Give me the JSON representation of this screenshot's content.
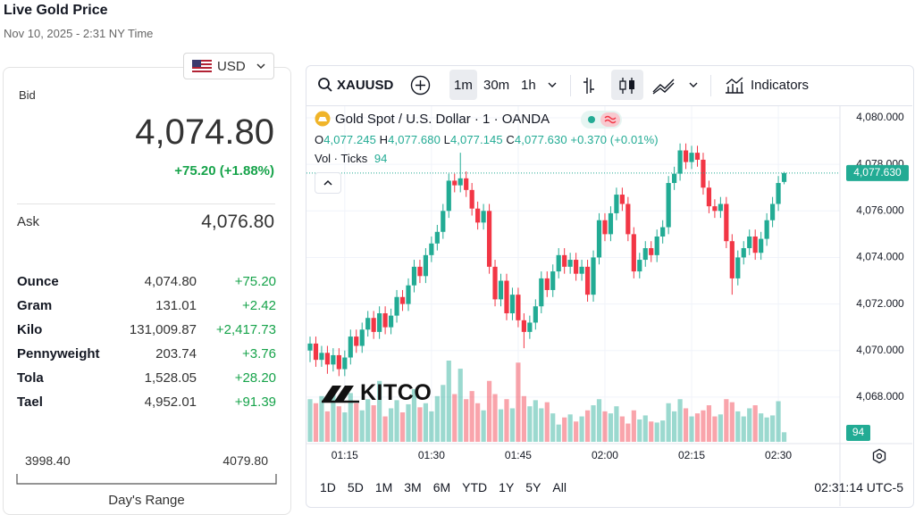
{
  "header": {
    "title": "Live Gold Price",
    "date": "Nov 10, 2025 - 2:31 NY Time"
  },
  "currency": "USD",
  "quote": {
    "bid_label": "Bid",
    "bid": "4,074.80",
    "change": "+75.20 (+1.88%)",
    "ask_label": "Ask",
    "ask": "4,076.80"
  },
  "units": {
    "rows": [
      [
        "Ounce",
        "4,074.80",
        "+75.20"
      ],
      [
        "Gram",
        "131.01",
        "+2.42"
      ],
      [
        "Kilo",
        "131,009.87",
        "+2,417.73"
      ],
      [
        "Pennyweight",
        "203.74",
        "+3.76"
      ],
      [
        "Tola",
        "1,528.05",
        "+28.20"
      ],
      [
        "Tael",
        "4,952.01",
        "+91.39"
      ]
    ]
  },
  "day_range": {
    "low": "3998.40",
    "high": "4079.80",
    "label": "Day's Range"
  },
  "toolbar": {
    "symbol": "XAUUSD",
    "intervals": [
      "1m",
      "30m",
      "1h"
    ],
    "indicators": "Indicators"
  },
  "legend": {
    "title": "Gold Spot / U.S. Dollar · 1 · OANDA",
    "open": {
      "label": "O",
      "value": "4,077.245"
    },
    "high": {
      "label": "H",
      "value": "4,077.680"
    },
    "low": {
      "label": "L",
      "value": "4,077.145"
    },
    "close": {
      "label": "C",
      "value": "4,077.630"
    },
    "change": "+0.370 (+0.01%)",
    "volume_label": "Vol · Ticks"
  },
  "logo": "KITCO",
  "ranges": [
    "1D",
    "5D",
    "1M",
    "3M",
    "6M",
    "YTD",
    "1Y",
    "5Y",
    "All"
  ],
  "clock": "02:31:14 UTC-5",
  "chart_data": {
    "type": "candlestick",
    "x": [
      "01:09",
      "01:10",
      "01:11",
      "01:12",
      "01:13",
      "01:14",
      "01:15",
      "01:16",
      "01:17",
      "01:18",
      "01:19",
      "01:20",
      "01:21",
      "01:22",
      "01:23",
      "01:24",
      "01:25",
      "01:26",
      "01:27",
      "01:28",
      "01:29",
      "01:30",
      "01:31",
      "01:32",
      "01:33",
      "01:34",
      "01:35",
      "01:36",
      "01:37",
      "01:38",
      "01:39",
      "01:40",
      "01:41",
      "01:42",
      "01:43",
      "01:44",
      "01:45",
      "01:46",
      "01:47",
      "01:48",
      "01:49",
      "01:50",
      "01:51",
      "01:52",
      "01:53",
      "01:54",
      "01:55",
      "01:56",
      "01:57",
      "01:58",
      "01:59",
      "02:00",
      "02:01",
      "02:02",
      "02:03",
      "02:04",
      "02:05",
      "02:06",
      "02:07",
      "02:08",
      "02:09",
      "02:10",
      "02:11",
      "02:12",
      "02:13",
      "02:14",
      "02:15",
      "02:16",
      "02:17",
      "02:18",
      "02:19",
      "02:20",
      "02:21",
      "02:22",
      "02:23",
      "02:24",
      "02:25",
      "02:26",
      "02:27",
      "02:28",
      "02:29",
      "02:30",
      "02:31"
    ],
    "open": [
      4070.0,
      4070.3,
      4069.6,
      4069.9,
      4069.4,
      4069.8,
      4069.2,
      4069.7,
      4070.6,
      4070.2,
      4070.9,
      4071.4,
      4070.8,
      4071.6,
      4071.0,
      4071.5,
      4072.3,
      4072.0,
      4072.8,
      4073.6,
      4073.2,
      4074.1,
      4074.6,
      4075.1,
      4076.0,
      4077.3,
      4077.1,
      4077.4,
      4076.9,
      4076.1,
      4075.5,
      4076.0,
      4073.6,
      4072.2,
      4073.0,
      4071.6,
      4072.4,
      4071.3,
      4070.8,
      4071.2,
      4071.9,
      4073.1,
      4072.6,
      4073.4,
      4074.1,
      4073.6,
      4073.9,
      4073.3,
      4073.6,
      4072.4,
      4074.0,
      4075.6,
      4075.0,
      4075.9,
      4076.7,
      4076.3,
      4075.0,
      4073.4,
      4073.9,
      4074.4,
      4074.1,
      4074.9,
      4075.3,
      4077.2,
      4077.6,
      4078.6,
      4078.1,
      4078.5,
      4078.2,
      4077.0,
      4076.2,
      4076.0,
      4076.3,
      4074.7,
      4073.1,
      4074.0,
      4074.4,
      4074.9,
      4074.2,
      4074.8,
      4075.6,
      4076.3,
      4077.245
    ],
    "high": [
      4070.6,
      4070.6,
      4070.2,
      4070.2,
      4070.1,
      4070.1,
      4070.0,
      4070.9,
      4070.9,
      4071.2,
      4071.7,
      4071.7,
      4071.9,
      4071.9,
      4071.8,
      4072.6,
      4072.6,
      4073.1,
      4073.9,
      4073.9,
      4074.4,
      4074.9,
      4075.4,
      4076.3,
      4077.6,
      4077.6,
      4078.5,
      4077.7,
      4077.2,
      4076.4,
      4076.3,
      4076.3,
      4073.9,
      4073.3,
      4073.3,
      4072.7,
      4072.7,
      4071.6,
      4071.5,
      4072.2,
      4073.4,
      4073.4,
      4073.7,
      4074.4,
      4074.4,
      4074.2,
      4074.2,
      4073.9,
      4073.9,
      4074.3,
      4075.9,
      4075.9,
      4076.2,
      4077.0,
      4077.0,
      4076.6,
      4075.3,
      4074.2,
      4074.7,
      4074.7,
      4075.2,
      4075.6,
      4077.5,
      4077.9,
      4078.9,
      4078.9,
      4078.8,
      4078.8,
      4078.5,
      4077.3,
      4076.5,
      4076.6,
      4076.6,
      4075.0,
      4074.3,
      4074.7,
      4075.2,
      4075.2,
      4075.1,
      4075.9,
      4076.6,
      4077.5,
      4077.68
    ],
    "low": [
      4069.5,
      4069.3,
      4069.3,
      4069.0,
      4069.1,
      4068.9,
      4068.9,
      4069.4,
      4069.9,
      4069.9,
      4070.6,
      4070.5,
      4070.5,
      4070.7,
      4070.7,
      4071.2,
      4071.7,
      4071.7,
      4072.5,
      4072.9,
      4072.9,
      4073.8,
      4074.3,
      4074.8,
      4075.7,
      4076.8,
      4076.8,
      4076.6,
      4075.8,
      4075.2,
      4075.2,
      4073.3,
      4071.9,
      4071.9,
      4071.3,
      4071.3,
      4071.0,
      4070.1,
      4070.5,
      4070.9,
      4071.6,
      4072.3,
      4072.3,
      4073.1,
      4073.3,
      4073.3,
      4073.0,
      4073.0,
      4072.1,
      4072.1,
      4073.7,
      4074.7,
      4074.7,
      4075.6,
      4076.0,
      4074.7,
      4073.1,
      4073.1,
      4073.6,
      4073.8,
      4073.8,
      4074.6,
      4075.0,
      4076.9,
      4077.3,
      4077.8,
      4077.8,
      4077.9,
      4076.7,
      4075.9,
      4075.7,
      4075.7,
      4074.4,
      4072.4,
      4072.8,
      4073.7,
      4074.1,
      4073.9,
      4073.9,
      4074.5,
      4075.3,
      4076.0,
      4077.145
    ],
    "close": [
      4070.3,
      4069.6,
      4069.9,
      4069.4,
      4069.8,
      4069.2,
      4069.7,
      4070.6,
      4070.2,
      4070.9,
      4071.4,
      4070.8,
      4071.6,
      4071.0,
      4071.5,
      4072.3,
      4072.0,
      4072.8,
      4073.6,
      4073.2,
      4074.1,
      4074.6,
      4075.1,
      4076.0,
      4077.3,
      4077.1,
      4077.4,
      4076.9,
      4076.1,
      4075.5,
      4076.0,
      4073.6,
      4072.2,
      4073.0,
      4071.6,
      4072.4,
      4071.3,
      4070.8,
      4071.2,
      4071.9,
      4073.1,
      4072.6,
      4073.4,
      4074.1,
      4073.6,
      4073.9,
      4073.3,
      4073.6,
      4072.4,
      4074.0,
      4075.6,
      4075.0,
      4075.9,
      4076.7,
      4076.3,
      4075.0,
      4073.4,
      4073.9,
      4074.4,
      4074.1,
      4074.9,
      4075.3,
      4077.2,
      4077.6,
      4078.6,
      4078.1,
      4078.5,
      4078.2,
      4077.0,
      4076.2,
      4076.0,
      4076.3,
      4074.7,
      4073.1,
      4074.0,
      4074.4,
      4074.9,
      4074.2,
      4074.8,
      4075.6,
      4076.3,
      4077.2,
      4077.63
    ],
    "volume": [
      420,
      380,
      450,
      300,
      520,
      350,
      290,
      480,
      380,
      310,
      420,
      360,
      600,
      250,
      330,
      410,
      290,
      370,
      520,
      340,
      380,
      300,
      450,
      560,
      800,
      470,
      720,
      420,
      500,
      380,
      310,
      600,
      470,
      320,
      420,
      330,
      780,
      450,
      350,
      410,
      330,
      390,
      280,
      170,
      240,
      270,
      200,
      250,
      310,
      360,
      420,
      300,
      280,
      350,
      250,
      180,
      310,
      220,
      260,
      200,
      190,
      210,
      380,
      300,
      420,
      330,
      250,
      280,
      310,
      360,
      250,
      270,
      420,
      390,
      300,
      250,
      330,
      360,
      280,
      240,
      260,
      400,
      94
    ],
    "ylim": [
      4066,
      4080.5
    ],
    "yticks": [
      {
        "value": 4068,
        "label": "4,068.000"
      },
      {
        "value": 4070,
        "label": "4,070.000"
      },
      {
        "value": 4072,
        "label": "4,072.000"
      },
      {
        "value": 4074,
        "label": "4,074.000"
      },
      {
        "value": 4076,
        "label": "4,076.000"
      },
      {
        "value": 4078,
        "label": "4,078.000"
      },
      {
        "value": 4080,
        "label": "4,080.000"
      }
    ],
    "xticks": [
      "01:15",
      "01:30",
      "01:45",
      "02:00",
      "02:15",
      "02:30"
    ],
    "up_color": "#22ab94",
    "down_color": "#f23645",
    "grid": true
  }
}
